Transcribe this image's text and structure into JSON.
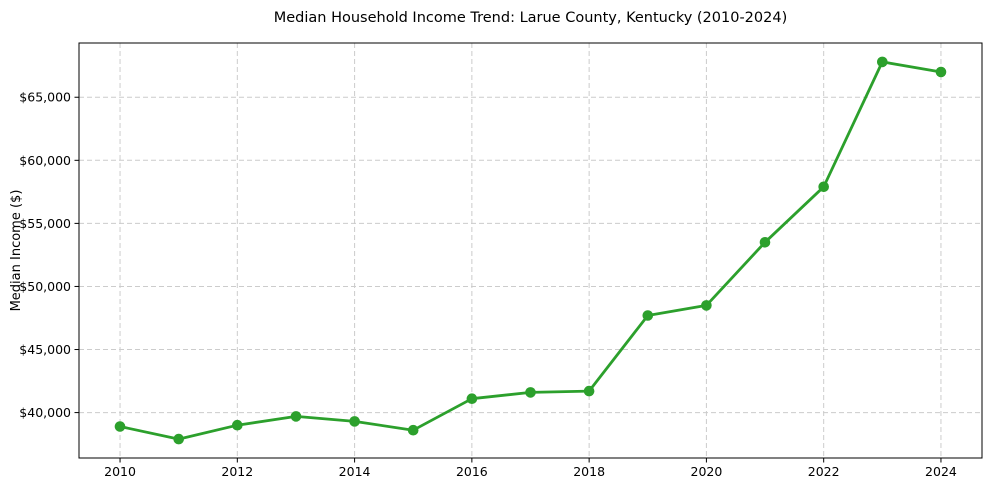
{
  "chart_data": {
    "type": "line",
    "title": "Median Household Income Trend: Larue County, Kentucky (2010-2024)",
    "xlabel": "",
    "ylabel": "Median Income ($)",
    "x": [
      2010,
      2011,
      2012,
      2013,
      2014,
      2015,
      2016,
      2017,
      2018,
      2019,
      2020,
      2021,
      2022,
      2023,
      2024
    ],
    "series": [
      {
        "name": "Median household income",
        "color": "#2ca02c",
        "values": [
          38900,
          37900,
          39000,
          39700,
          39300,
          38600,
          41100,
          41600,
          41700,
          47700,
          48500,
          53500,
          57900,
          67800,
          67000
        ]
      }
    ],
    "x_ticks": [
      2010,
      2012,
      2014,
      2016,
      2018,
      2020,
      2022,
      2024
    ],
    "x_tick_labels": [
      "2010",
      "2012",
      "2014",
      "2016",
      "2018",
      "2020",
      "2022",
      "2024"
    ],
    "y_ticks": [
      40000,
      45000,
      50000,
      55000,
      60000,
      65000
    ],
    "y_tick_labels": [
      "$40,000",
      "$45,000",
      "$50,000",
      "$55,000",
      "$60,000",
      "$65,000"
    ],
    "xlim": [
      2009.3,
      2024.7
    ],
    "ylim": [
      36400,
      69300
    ],
    "grid": true,
    "grid_style": "dashed",
    "grid_color": "#cccccc",
    "legend_position": "none",
    "marker": "circle",
    "marker_size": 5.3,
    "line_width": 2.8,
    "spine_color": "#000000",
    "tick_color": "#000000",
    "text_color": "#000000",
    "background_color": "#ffffff"
  }
}
